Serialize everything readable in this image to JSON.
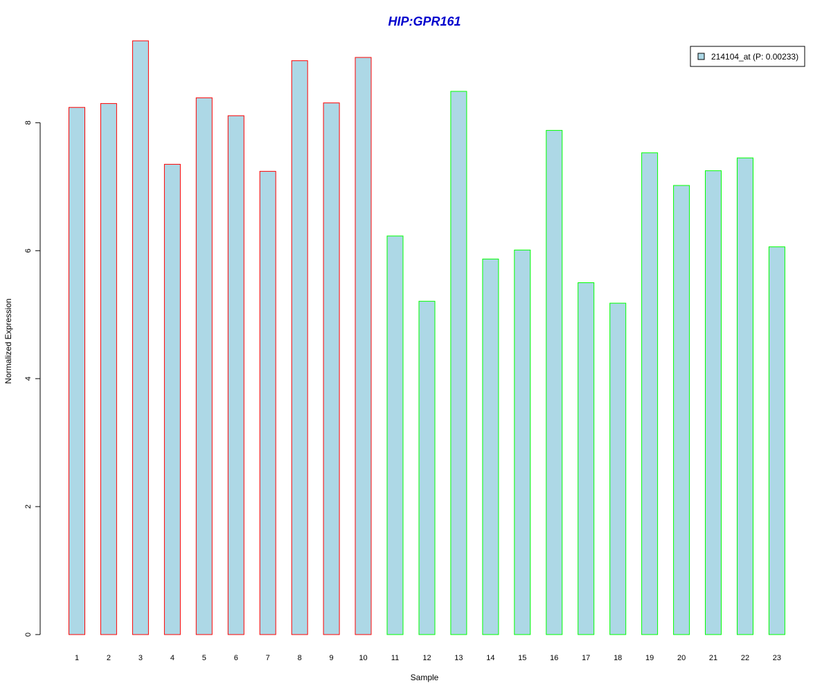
{
  "chart_data": {
    "type": "bar",
    "title": "HIP:GPR161",
    "xlabel": "Sample",
    "ylabel": "Normalized Expression",
    "categories": [
      "1",
      "2",
      "3",
      "4",
      "5",
      "6",
      "7",
      "8",
      "9",
      "10",
      "11",
      "12",
      "13",
      "14",
      "15",
      "16",
      "17",
      "18",
      "19",
      "20",
      "21",
      "22",
      "23"
    ],
    "values": [
      8.24,
      8.3,
      9.28,
      7.35,
      8.39,
      8.11,
      7.24,
      8.97,
      8.31,
      9.02,
      6.23,
      5.21,
      8.49,
      5.87,
      6.01,
      7.88,
      5.5,
      5.18,
      7.53,
      7.02,
      7.25,
      7.45,
      6.06
    ],
    "group": [
      1,
      1,
      1,
      1,
      1,
      1,
      1,
      1,
      1,
      1,
      2,
      2,
      2,
      2,
      2,
      2,
      2,
      2,
      2,
      2,
      2,
      2,
      2
    ],
    "ylim": [
      0,
      9.28
    ],
    "yticks": [
      0,
      2,
      4,
      6,
      8
    ],
    "legend": {
      "label": "214104_at (P: 0.00233)",
      "position": "top-right"
    },
    "grid": false,
    "colors": {
      "fill": "#add8e6",
      "group1_border": "#ff0000",
      "group2_border": "#00ff00",
      "title": "#0000cd",
      "axis": "#000000"
    }
  }
}
